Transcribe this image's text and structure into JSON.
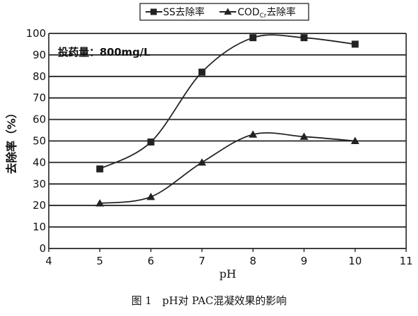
{
  "chart_data": {
    "type": "line",
    "x": [
      5,
      6,
      7,
      8,
      9,
      10
    ],
    "xlabel": "pH",
    "ylabel": "去除率（%）",
    "xlim": [
      4,
      11
    ],
    "ylim": [
      0,
      100
    ],
    "xticks": [
      4,
      5,
      6,
      7,
      8,
      9,
      10,
      11
    ],
    "yticks": [
      0,
      10,
      20,
      30,
      40,
      50,
      60,
      70,
      80,
      90,
      100
    ],
    "grid": "horizontal",
    "legend_position": "top",
    "annotation": "投药量：800mg/L",
    "series": [
      {
        "name": "SS去除率",
        "marker": "square",
        "values": [
          37,
          49.5,
          82,
          98,
          98,
          95
        ]
      },
      {
        "name_main": "COD",
        "name_sub": "Cr",
        "name_suffix": "去除率",
        "marker": "triangle",
        "values": [
          21,
          24,
          40,
          53,
          52,
          50
        ]
      }
    ],
    "caption": "图 1　pH对 PAC混凝效果的影响"
  }
}
